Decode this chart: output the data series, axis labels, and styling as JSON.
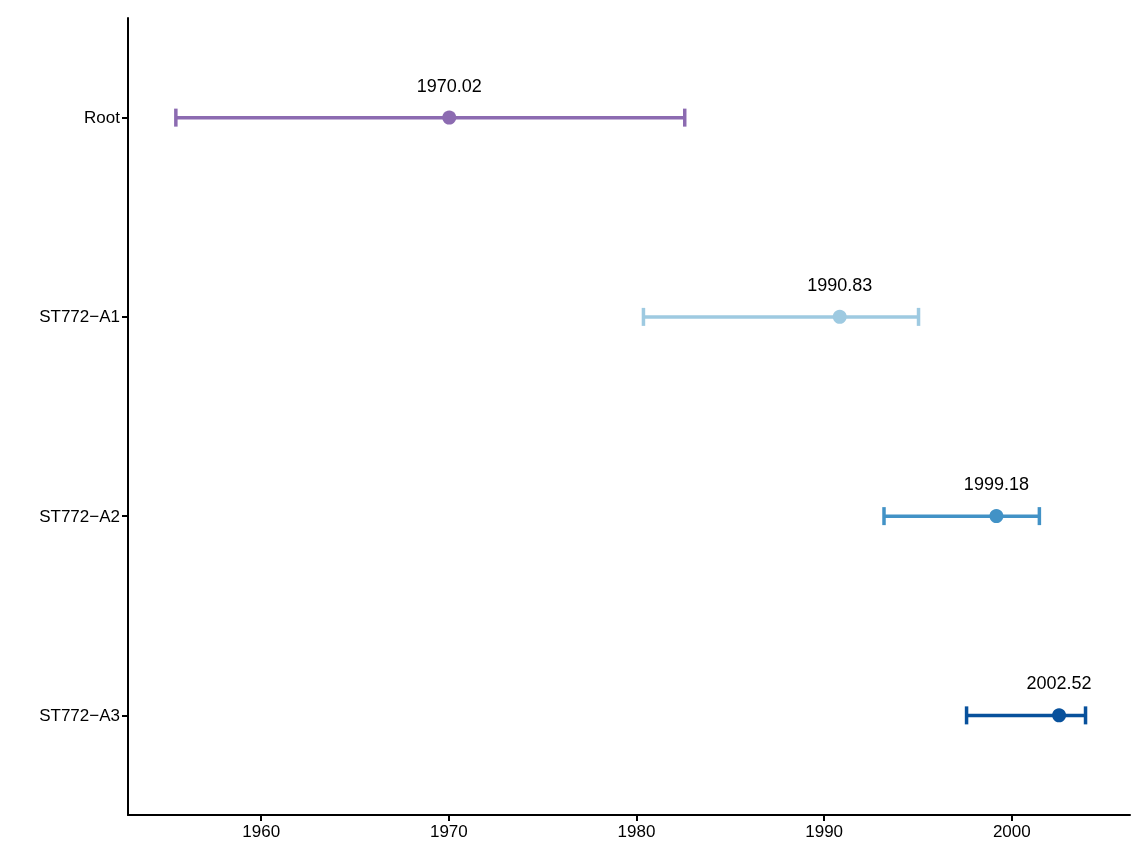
{
  "chart_data": {
    "type": "scatter",
    "orientation": "horizontal",
    "categories": [
      "Root",
      "ST772−A1",
      "ST772−A2",
      "ST772−A3"
    ],
    "values": [
      1970.02,
      1990.83,
      1999.18,
      2002.52
    ],
    "errors": [
      [
        1955.45,
        1982.57
      ],
      [
        1980.37,
        1995.03
      ],
      [
        1993.19,
        2001.47
      ],
      [
        1997.59,
        2003.93
      ]
    ],
    "colors": [
      "#8c6bb1",
      "#9ecae1",
      "#4292c6",
      "#08519c"
    ],
    "data_labels": true,
    "xlim": [
      1952.9,
      2006.3
    ],
    "xticks": [
      1960,
      1970,
      1980,
      1990,
      2000
    ],
    "grid": false,
    "marker": "circle"
  }
}
